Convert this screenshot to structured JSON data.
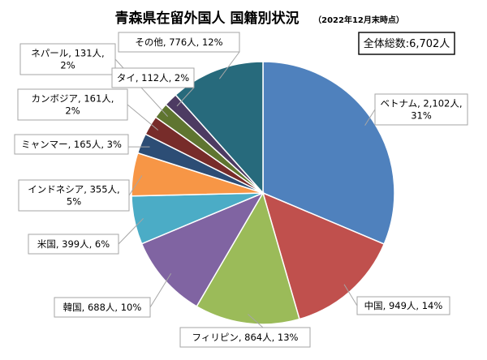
{
  "chart_data": {
    "type": "pie",
    "title": "青森県在留外国人 国籍別状況",
    "subtitle": "（2022年12月末時点）",
    "total_label": "全体総数:6,702人",
    "start": "12-o'clock",
    "direction": "clockwise",
    "slices": [
      {
        "name": "ベトナム",
        "value": 2102,
        "unit": "人",
        "percent": 31,
        "line1": "ベトナム, 2,102人,",
        "line2": "31%",
        "color": "#4F81BD"
      },
      {
        "name": "中国",
        "value": 949,
        "unit": "人",
        "percent": 14,
        "line1": "中国, 949人, 14%",
        "line2": "",
        "color": "#C0504D"
      },
      {
        "name": "フィリピン",
        "value": 864,
        "unit": "人",
        "percent": 13,
        "line1": "フィリピン, 864人, 13%",
        "line2": "",
        "color": "#9BBB59"
      },
      {
        "name": "韓国",
        "value": 688,
        "unit": "人",
        "percent": 10,
        "line1": "韓国, 688人, 10%",
        "line2": "",
        "color": "#8064A2"
      },
      {
        "name": "米国",
        "value": 399,
        "unit": "人",
        "percent": 6,
        "line1": "米国, 399人, 6%",
        "line2": "",
        "color": "#4BACC6"
      },
      {
        "name": "インドネシア",
        "value": 355,
        "unit": "人",
        "percent": 5,
        "line1": "インドネシア, 355人,",
        "line2": "5%",
        "color": "#F79646"
      },
      {
        "name": "ミャンマー",
        "value": 165,
        "unit": "人",
        "percent": 3,
        "line1": "ミャンマー, 165人, 3%",
        "line2": "",
        "color": "#2C4D75"
      },
      {
        "name": "カンボジア",
        "value": 161,
        "unit": "人",
        "percent": 2,
        "line1": "カンボジア, 161人,",
        "line2": "2%",
        "color": "#772C2A"
      },
      {
        "name": "ネパール",
        "value": 131,
        "unit": "人",
        "percent": 2,
        "line1": "ネパール, 131人,",
        "line2": "2%",
        "color": "#5F7530"
      },
      {
        "name": "タイ",
        "value": 112,
        "unit": "人",
        "percent": 2,
        "line1": "タイ, 112人, 2%",
        "line2": "",
        "color": "#4D3B62"
      },
      {
        "name": "その他",
        "value": 776,
        "unit": "人",
        "percent": 12,
        "line1": "その他, 776人, 12%",
        "line2": "",
        "color": "#276A7C"
      }
    ]
  }
}
